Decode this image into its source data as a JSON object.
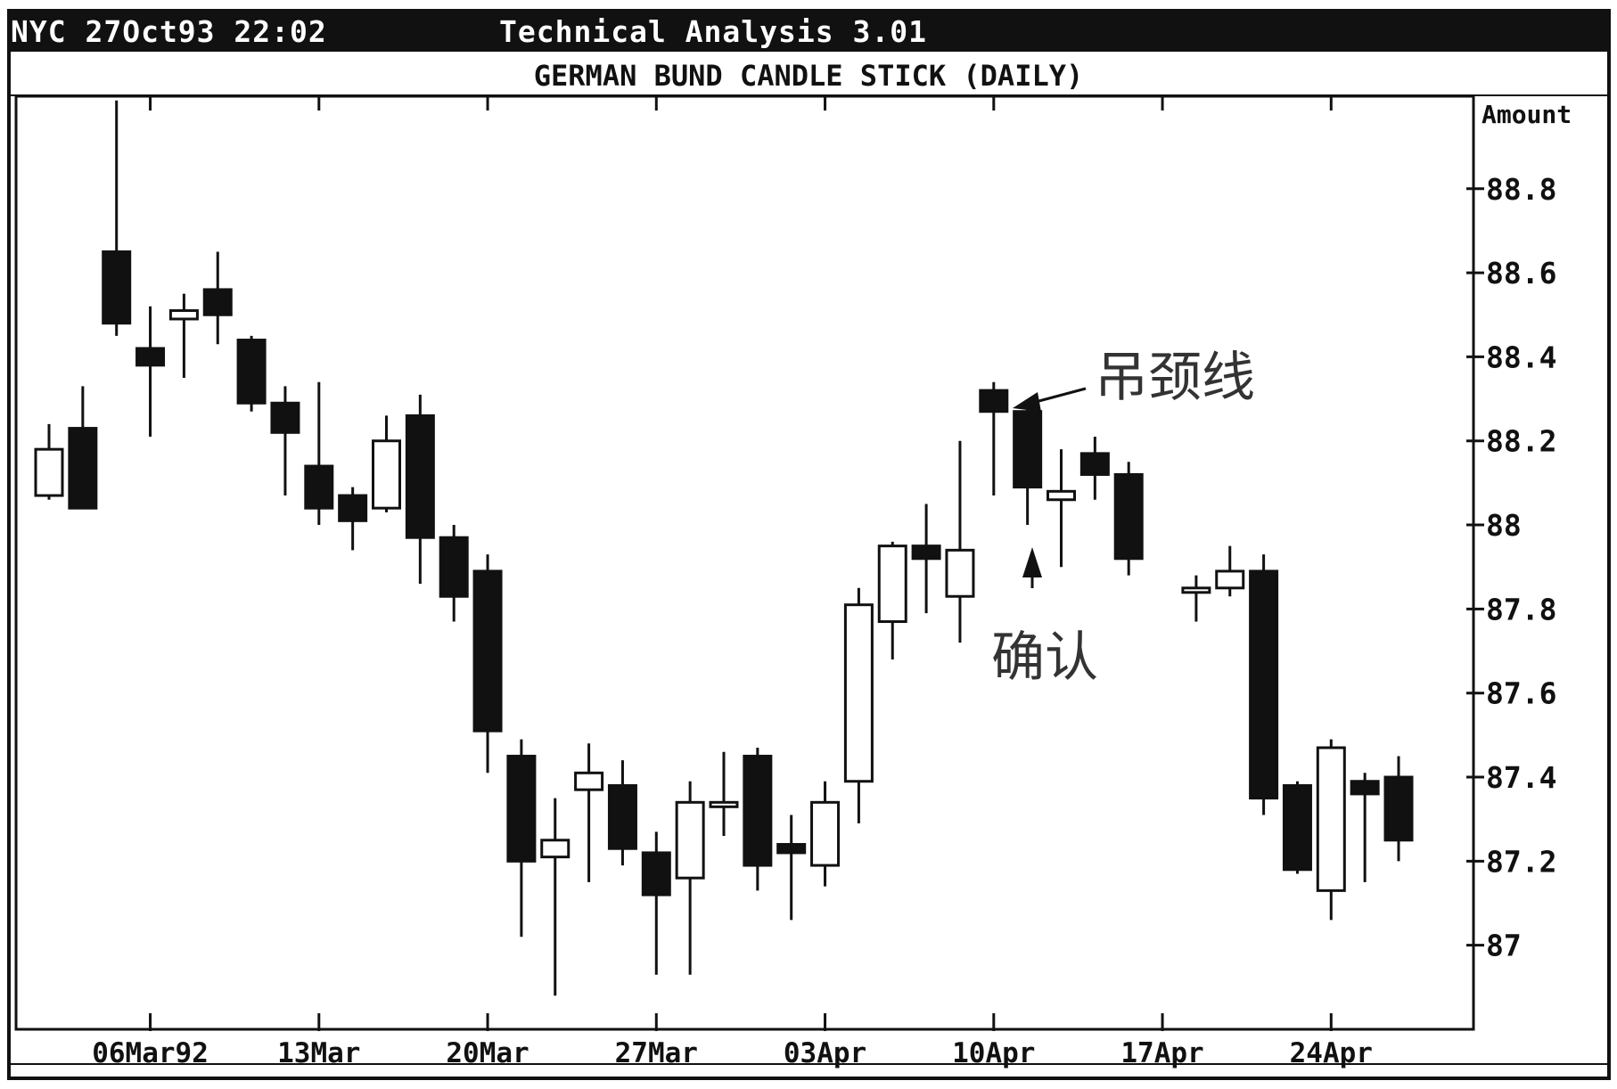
{
  "window": {
    "status": "NYC 27Oct93 22:02",
    "app_title": "Technical Analysis 3.01"
  },
  "chart_data": {
    "type": "candlestick",
    "title": "GERMAN BUND CANDLE STICK (DAILY)",
    "ylabel": "Amount",
    "ylim": [
      86.8,
      89.02
    ],
    "yticks": [
      "88.8",
      "88.6",
      "88.4",
      "88.2",
      "88",
      "87.8",
      "87.6",
      "87.4",
      "87.2",
      "87"
    ],
    "x_tick_labels": [
      "06Mar92",
      "13Mar",
      "20Mar",
      "27Mar",
      "03Apr",
      "10Apr",
      "17Apr",
      "24Apr"
    ],
    "candles": [
      {
        "open": 88.07,
        "high": 88.24,
        "low": 88.06,
        "close": 88.18
      },
      {
        "open": 88.23,
        "high": 88.33,
        "low": 88.04,
        "close": 88.04
      },
      {
        "open": 88.65,
        "high": 89.01,
        "low": 88.45,
        "close": 88.48
      },
      {
        "open": 88.42,
        "high": 88.52,
        "low": 88.21,
        "close": 88.38
      },
      {
        "open": 88.49,
        "high": 88.55,
        "low": 88.35,
        "close": 88.51
      },
      {
        "open": 88.56,
        "high": 88.65,
        "low": 88.43,
        "close": 88.5
      },
      {
        "open": 88.44,
        "high": 88.45,
        "low": 88.27,
        "close": 88.29
      },
      {
        "open": 88.29,
        "high": 88.33,
        "low": 88.07,
        "close": 88.22
      },
      {
        "open": 88.14,
        "high": 88.34,
        "low": 88.0,
        "close": 88.04
      },
      {
        "open": 88.07,
        "high": 88.09,
        "low": 87.94,
        "close": 88.01
      },
      {
        "open": 88.04,
        "high": 88.26,
        "low": 88.03,
        "close": 88.2
      },
      {
        "open": 88.26,
        "high": 88.31,
        "low": 87.86,
        "close": 87.97
      },
      {
        "open": 87.97,
        "high": 88.0,
        "low": 87.77,
        "close": 87.83
      },
      {
        "open": 87.89,
        "high": 87.93,
        "low": 87.41,
        "close": 87.51
      },
      {
        "open": 87.45,
        "high": 87.49,
        "low": 87.02,
        "close": 87.2
      },
      {
        "open": 87.21,
        "high": 87.35,
        "low": 86.88,
        "close": 87.25
      },
      {
        "open": 87.37,
        "high": 87.48,
        "low": 87.15,
        "close": 87.41
      },
      {
        "open": 87.38,
        "high": 87.44,
        "low": 87.19,
        "close": 87.23
      },
      {
        "open": 87.22,
        "high": 87.27,
        "low": 86.93,
        "close": 87.12
      },
      {
        "open": 87.16,
        "high": 87.39,
        "low": 86.93,
        "close": 87.34
      },
      {
        "open": 87.33,
        "high": 87.46,
        "low": 87.26,
        "close": 87.34
      },
      {
        "open": 87.45,
        "high": 87.47,
        "low": 87.13,
        "close": 87.19
      },
      {
        "open": 87.24,
        "high": 87.31,
        "low": 87.06,
        "close": 87.22
      },
      {
        "open": 87.19,
        "high": 87.39,
        "low": 87.14,
        "close": 87.34
      },
      {
        "open": 87.39,
        "high": 87.85,
        "low": 87.29,
        "close": 87.81
      },
      {
        "open": 87.77,
        "high": 87.96,
        "low": 87.68,
        "close": 87.95
      },
      {
        "open": 87.95,
        "high": 88.05,
        "low": 87.79,
        "close": 87.92
      },
      {
        "open": 87.83,
        "high": 88.2,
        "low": 87.72,
        "close": 87.94
      },
      {
        "open": 88.32,
        "high": 88.34,
        "low": 88.07,
        "close": 88.27
      },
      {
        "open": 88.27,
        "high": 88.28,
        "low": 88.0,
        "close": 88.09
      },
      {
        "open": 88.06,
        "high": 88.18,
        "low": 87.9,
        "close": 88.08
      },
      {
        "open": 88.17,
        "high": 88.21,
        "low": 88.06,
        "close": 88.12
      },
      {
        "open": 88.12,
        "high": 88.15,
        "low": 87.88,
        "close": 87.92
      },
      null,
      {
        "open": 87.84,
        "high": 87.88,
        "low": 87.77,
        "close": 87.85
      },
      {
        "open": 87.85,
        "high": 87.95,
        "low": 87.83,
        "close": 87.89
      },
      {
        "open": 87.89,
        "high": 87.93,
        "low": 87.31,
        "close": 87.35
      },
      {
        "open": 87.38,
        "high": 87.39,
        "low": 87.17,
        "close": 87.18
      },
      {
        "open": 87.13,
        "high": 87.49,
        "low": 87.06,
        "close": 87.47
      },
      {
        "open": 87.39,
        "high": 87.41,
        "low": 87.15,
        "close": 87.36
      },
      {
        "open": 87.4,
        "high": 87.45,
        "low": 87.2,
        "close": 87.25
      }
    ],
    "annotations": {
      "hanging_man": "吊颈线",
      "confirmation": "确认"
    },
    "grid": false,
    "colors": {
      "bearish": "#111111",
      "bullish": "#ffffff",
      "outline": "#111111"
    }
  }
}
